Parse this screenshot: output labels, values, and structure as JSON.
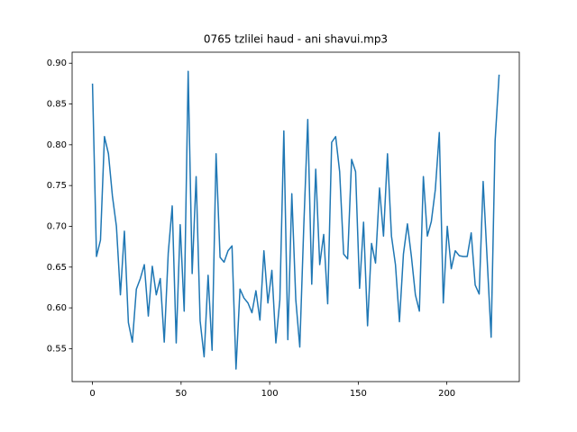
{
  "chart_data": {
    "type": "line",
    "title": "0765 tzlilei haud - ani shavui.mp3",
    "x": [
      0,
      2.25,
      4.5,
      6.75,
      9,
      11.25,
      13.5,
      15.75,
      18,
      20.25,
      22.5,
      24.75,
      27,
      29.25,
      31.5,
      33.75,
      36,
      38.25,
      40.5,
      42.75,
      45,
      47.25,
      49.5,
      51.75,
      54,
      56.25,
      58.5,
      60.75,
      63,
      65.25,
      67.5,
      69.75,
      72,
      74.25,
      76.5,
      78.75,
      81,
      83.25,
      85.5,
      87.75,
      90,
      92.25,
      94.5,
      96.75,
      99,
      101.25,
      103.5,
      105.75,
      108,
      110.25,
      112.5,
      114.75,
      117,
      119.25,
      121.5,
      123.75,
      126,
      128.25,
      130.5,
      132.75,
      135,
      137.25,
      139.5,
      141.75,
      144,
      146.25,
      148.5,
      150.75,
      153,
      155.25,
      157.5,
      159.75,
      162,
      164.25,
      166.5,
      168.75,
      171,
      173.25,
      175.5,
      177.75,
      180,
      182.25,
      184.5,
      186.75,
      189,
      191.25,
      193.5,
      195.75,
      198,
      200.25,
      202.5,
      204.75,
      207,
      209.25,
      211.5,
      213.75,
      216,
      218.25,
      220.5,
      222.75,
      225,
      227.25,
      229.5
    ],
    "series": [
      {
        "color": "#1f77b4",
        "values": [
          0.875,
          0.663,
          0.683,
          0.81,
          0.789,
          0.737,
          0.7,
          0.616,
          0.694,
          0.582,
          0.558,
          0.623,
          0.636,
          0.653,
          0.59,
          0.651,
          0.616,
          0.636,
          0.558,
          0.667,
          0.725,
          0.557,
          0.702,
          0.596,
          0.89,
          0.642,
          0.761,
          0.584,
          0.54,
          0.64,
          0.548,
          0.789,
          0.662,
          0.656,
          0.67,
          0.676,
          0.525,
          0.623,
          0.612,
          0.606,
          0.594,
          0.621,
          0.585,
          0.67,
          0.606,
          0.646,
          0.557,
          0.61,
          0.817,
          0.561,
          0.74,
          0.61,
          0.552,
          0.7,
          0.831,
          0.629,
          0.77,
          0.653,
          0.69,
          0.605,
          0.803,
          0.81,
          0.767,
          0.666,
          0.66,
          0.782,
          0.767,
          0.624,
          0.705,
          0.578,
          0.679,
          0.655,
          0.747,
          0.688,
          0.789,
          0.688,
          0.653,
          0.583,
          0.666,
          0.703,
          0.663,
          0.616,
          0.596,
          0.761,
          0.688,
          0.706,
          0.745,
          0.815,
          0.606,
          0.7,
          0.648,
          0.67,
          0.664,
          0.663,
          0.663,
          0.692,
          0.628,
          0.617,
          0.755,
          0.66,
          0.564,
          0.805,
          0.886
        ]
      }
    ],
    "xlim": [
      -11.5,
      240.9
    ],
    "ylim": [
      0.5096,
      0.9135
    ],
    "xticks": [
      0,
      50,
      100,
      150,
      200
    ],
    "yticks": [
      {
        "value": 0.55,
        "label": "0.55"
      },
      {
        "value": 0.6,
        "label": "0.60"
      },
      {
        "value": 0.65,
        "label": "0.65"
      },
      {
        "value": 0.7,
        "label": "0.70"
      },
      {
        "value": 0.75,
        "label": "0.75"
      },
      {
        "value": 0.8,
        "label": "0.80"
      },
      {
        "value": 0.85,
        "label": "0.85"
      },
      {
        "value": 0.9,
        "label": "0.90"
      }
    ]
  }
}
